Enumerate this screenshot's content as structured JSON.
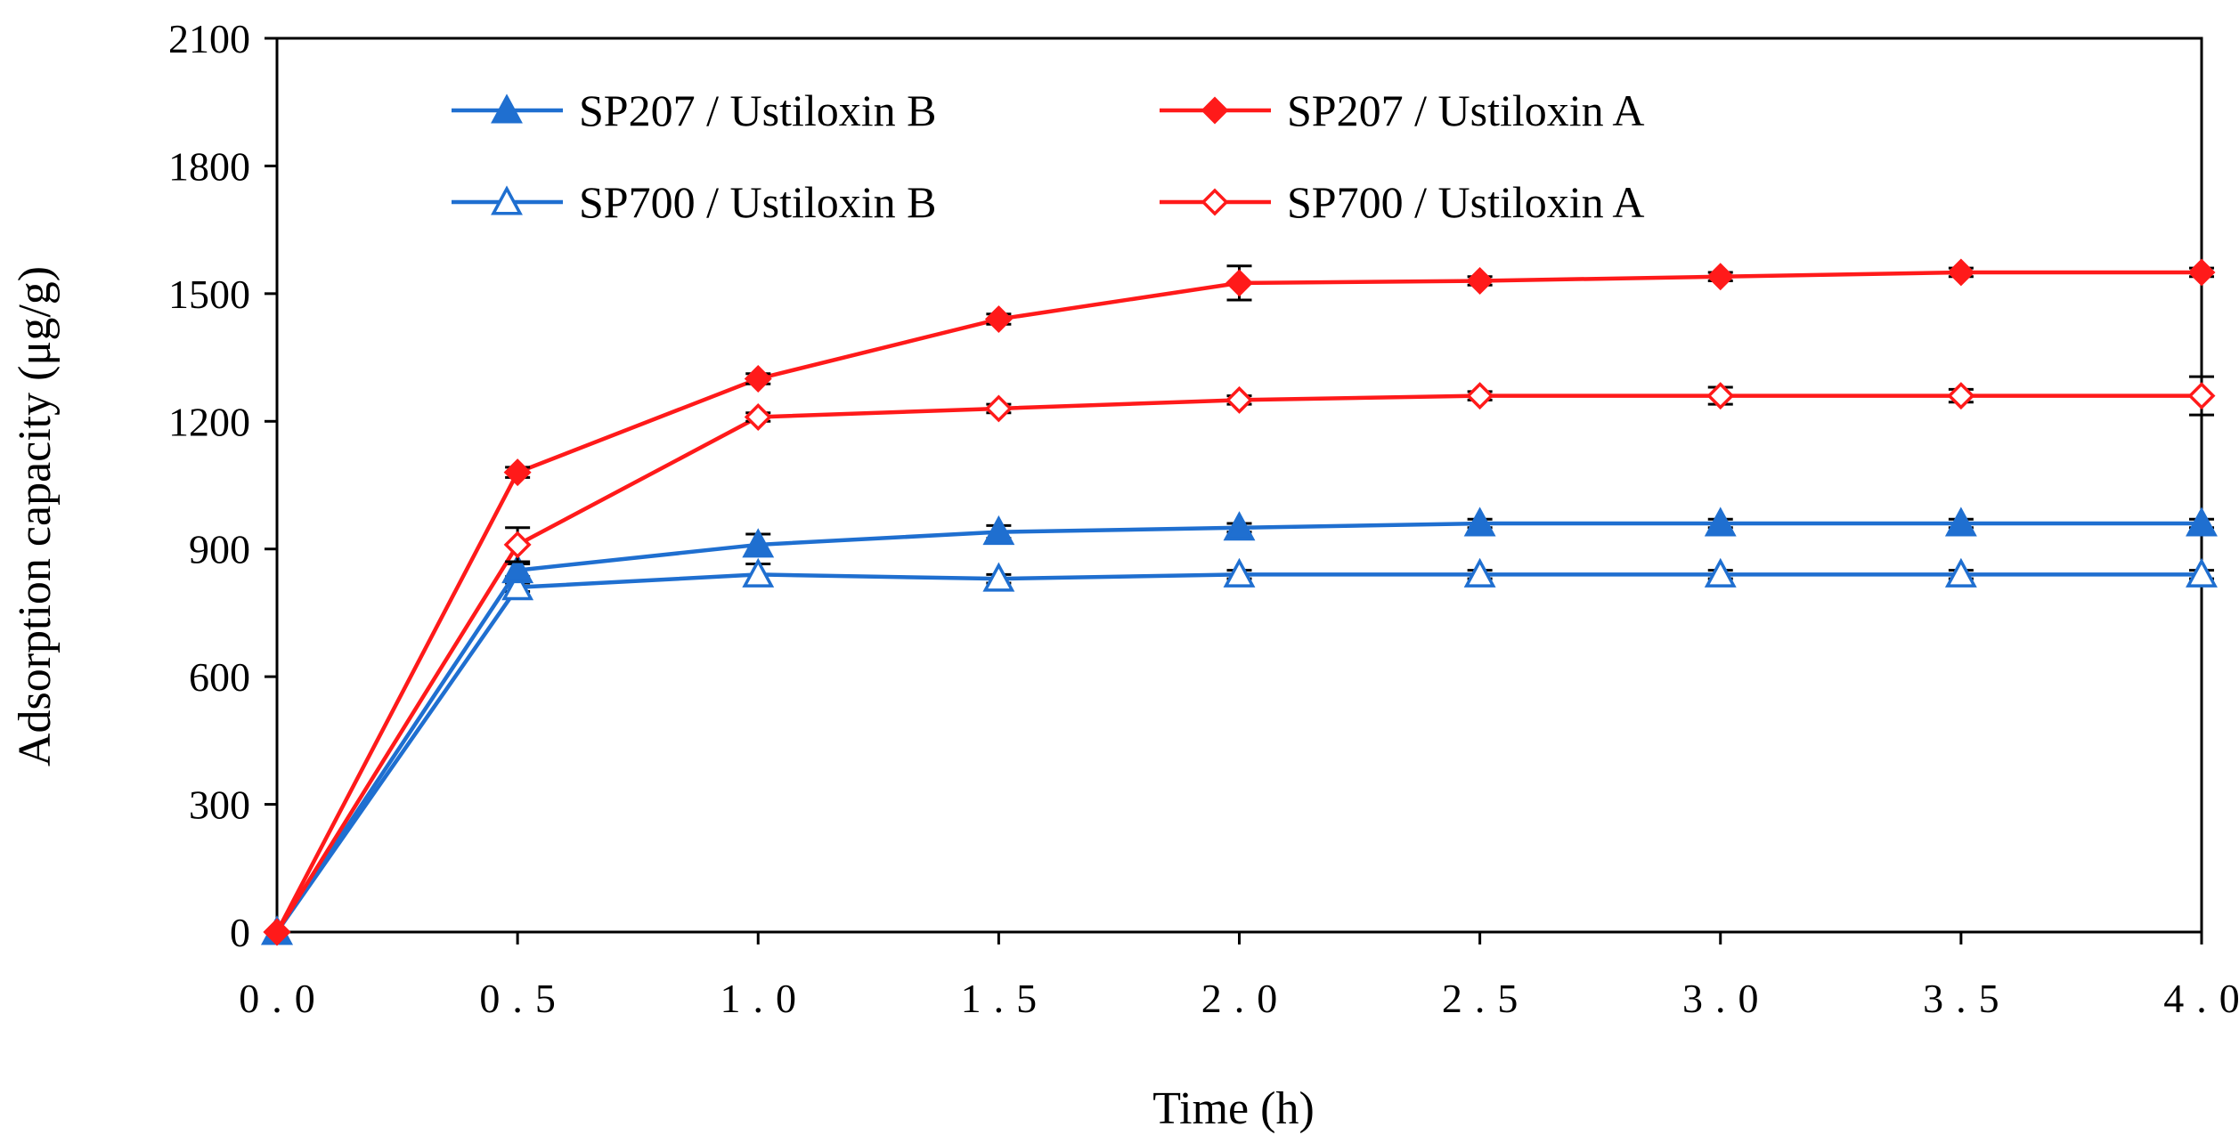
{
  "chart_data": {
    "type": "line",
    "title": "",
    "xlabel": "Time (h)",
    "ylabel": "Adsorption capacity (μg/g)",
    "xlim": [
      0,
      4
    ],
    "ylim": [
      0,
      2100
    ],
    "x_ticks": [
      0,
      0.5,
      1,
      1.5,
      2,
      2.5,
      3,
      3.5,
      4
    ],
    "x_tick_labels": [
      "0.0",
      "0.5",
      "1.0",
      "1.5",
      "2.0",
      "2.5",
      "3.0",
      "3.5",
      "4.0"
    ],
    "y_ticks": [
      0,
      300,
      600,
      900,
      1200,
      1500,
      1800,
      2100
    ],
    "y_tick_labels": [
      "0",
      "300",
      "600",
      "900",
      "1200",
      "1500",
      "1800",
      "2100"
    ],
    "grid": false,
    "legend_position": "top",
    "x": [
      0,
      0.5,
      1,
      1.5,
      2,
      2.5,
      3,
      3.5,
      4
    ],
    "series": [
      {
        "name": "SP207 / Ustiloxin B",
        "color": "#1F6FD0",
        "marker": "triangle-filled",
        "values": [
          0,
          850,
          910,
          940,
          950,
          960,
          960,
          960,
          960
        ],
        "errors": [
          0,
          15,
          25,
          15,
          10,
          10,
          10,
          10,
          10
        ]
      },
      {
        "name": "SP207 / Ustiloxin A",
        "color": "#FF1A1A",
        "marker": "diamond-filled",
        "values": [
          0,
          1080,
          1300,
          1440,
          1525,
          1530,
          1540,
          1550,
          1550
        ],
        "errors": [
          0,
          12,
          12,
          12,
          40,
          10,
          10,
          10,
          10
        ]
      },
      {
        "name": "SP700 / Ustiloxin B",
        "color": "#1F6FD0",
        "marker": "triangle-open",
        "values": [
          0,
          810,
          840,
          830,
          840,
          840,
          840,
          840,
          840
        ],
        "errors": [
          0,
          10,
          25,
          10,
          10,
          10,
          10,
          10,
          10
        ]
      },
      {
        "name": "SP700 / Ustiloxin A",
        "color": "#FF1A1A",
        "marker": "diamond-open",
        "values": [
          0,
          910,
          1210,
          1230,
          1250,
          1260,
          1260,
          1260,
          1260
        ],
        "errors": [
          0,
          40,
          10,
          10,
          10,
          10,
          20,
          15,
          45
        ]
      }
    ],
    "errorbar_color": "#000000"
  }
}
